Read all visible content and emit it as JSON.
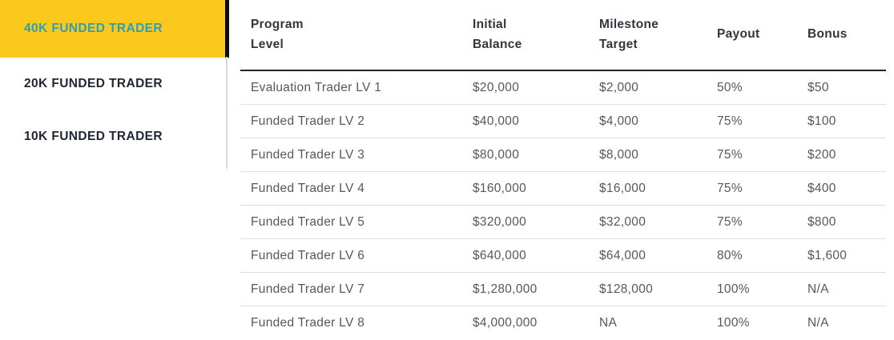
{
  "sidebar": {
    "tabs": [
      {
        "label": "40K FUNDED TRADER",
        "active": true
      },
      {
        "label": "20K FUNDED TRADER",
        "active": false
      },
      {
        "label": "10K FUNDED TRADER",
        "active": false
      }
    ]
  },
  "table": {
    "columns": [
      "Program Level",
      "Initial Balance",
      "Milestone Target",
      "Payout",
      "Bonus"
    ],
    "rows": [
      [
        "Evaluation Trader LV 1",
        "$20,000",
        "$2,000",
        "50%",
        "$50"
      ],
      [
        "Funded Trader LV 2",
        "$40,000",
        "$4,000",
        "75%",
        "$100"
      ],
      [
        "Funded Trader LV 3",
        "$80,000",
        "$8,000",
        "75%",
        "$200"
      ],
      [
        "Funded Trader LV 4",
        "$160,000",
        "$16,000",
        "75%",
        "$400"
      ],
      [
        "Funded Trader LV 5",
        "$320,000",
        "$32,000",
        "75%",
        "$800"
      ],
      [
        "Funded Trader LV 6",
        "$640,000",
        "$64,000",
        "80%",
        "$1,600"
      ],
      [
        "Funded Trader LV 7",
        "$1,280,000",
        "$128,000",
        "100%",
        "N/A"
      ],
      [
        "Funded Trader LV 8",
        "$4,000,000",
        "NA",
        "100%",
        "N/A"
      ]
    ]
  },
  "colors": {
    "active_tab_bg": "#FBC91D",
    "active_tab_text": "#2F9FB3",
    "inactive_tab_text": "#1E2634",
    "header_text": "#32363C",
    "body_text": "#54585D",
    "row_divider": "#DFDFDF",
    "header_divider": "#202328",
    "accent_bar": "#0B0B0B",
    "sidebar_divider": "#D8D8D8"
  }
}
